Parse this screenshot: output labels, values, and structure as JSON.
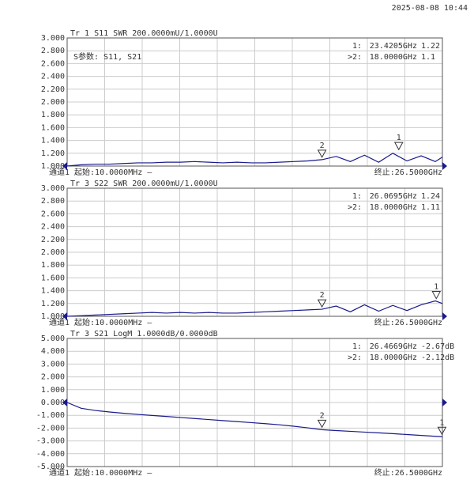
{
  "timestamp": "2025-08-08 10:44",
  "chart_data": [
    {
      "type": "line",
      "title": "Tr 1  S11 SWR 200.0000mU/1.0000U",
      "annotation": "S参数:  S11, S21",
      "footer_start": "通道1  起始:10.0000MHz —",
      "footer_end": "终止:26.5000GHz",
      "xlim": [
        0.01,
        26.5
      ],
      "ylim": [
        1,
        3
      ],
      "ref_level": 1,
      "yticks": [
        {
          "value": 3,
          "label": "3.000"
        },
        {
          "value": 2.8,
          "label": "2.800"
        },
        {
          "value": 2.6,
          "label": "2.600"
        },
        {
          "value": 2.4,
          "label": "2.400"
        },
        {
          "value": 2.2,
          "label": "2.200"
        },
        {
          "value": 2,
          "label": "2.000"
        },
        {
          "value": 1.8,
          "label": "1.800"
        },
        {
          "value": 1.6,
          "label": "1.600"
        },
        {
          "value": 1.4,
          "label": "1.400"
        },
        {
          "value": 1.2,
          "label": "1.200"
        },
        {
          "value": 1,
          "label": "1.000"
        }
      ],
      "x": [
        0.01,
        1,
        2,
        3,
        4,
        5,
        6,
        7,
        8,
        9,
        10,
        11,
        12,
        13,
        14,
        15,
        16,
        17,
        18,
        19,
        20,
        21,
        22,
        23,
        24,
        25,
        26,
        26.5
      ],
      "series": [
        {
          "color": "#1a1a8c",
          "values": [
            1.0,
            1.02,
            1.03,
            1.03,
            1.04,
            1.05,
            1.05,
            1.06,
            1.06,
            1.07,
            1.06,
            1.05,
            1.06,
            1.05,
            1.05,
            1.06,
            1.07,
            1.08,
            1.1,
            1.15,
            1.07,
            1.17,
            1.06,
            1.2,
            1.08,
            1.16,
            1.07,
            1.14
          ]
        }
      ],
      "markers": [
        {
          "id": "1",
          "prefix": "1:",
          "x": 23.4205,
          "x_label": "23.4205GHz",
          "y": 1.22
        },
        {
          "id": "2",
          "prefix": ">2:",
          "x": 18,
          "x_label": "18.0000GHz",
          "y": 1.1
        }
      ]
    },
    {
      "type": "line",
      "title": "Tr 3  S22 SWR 200.0000mU/1.0000U",
      "footer_start": "通道1  起始:10.0000MHz —",
      "footer_end": "终止:26.5000GHz",
      "xlim": [
        0.01,
        26.5
      ],
      "ylim": [
        1,
        3
      ],
      "ref_level": 1,
      "yticks": [
        {
          "value": 3,
          "label": "3.000"
        },
        {
          "value": 2.8,
          "label": "2.800"
        },
        {
          "value": 2.6,
          "label": "2.600"
        },
        {
          "value": 2.4,
          "label": "2.400"
        },
        {
          "value": 2.2,
          "label": "2.200"
        },
        {
          "value": 2,
          "label": "2.000"
        },
        {
          "value": 1.8,
          "label": "1.800"
        },
        {
          "value": 1.6,
          "label": "1.600"
        },
        {
          "value": 1.4,
          "label": "1.400"
        },
        {
          "value": 1.2,
          "label": "1.200"
        },
        {
          "value": 1,
          "label": "1.000"
        }
      ],
      "x": [
        0.01,
        1,
        2,
        3,
        4,
        5,
        6,
        7,
        8,
        9,
        10,
        11,
        12,
        13,
        14,
        15,
        16,
        17,
        18,
        19,
        20,
        21,
        22,
        23,
        24,
        25,
        26,
        26.5
      ],
      "series": [
        {
          "color": "#1a1a8c",
          "values": [
            1.0,
            1.01,
            1.02,
            1.03,
            1.04,
            1.05,
            1.06,
            1.05,
            1.06,
            1.05,
            1.06,
            1.05,
            1.05,
            1.06,
            1.07,
            1.08,
            1.09,
            1.1,
            1.11,
            1.16,
            1.07,
            1.18,
            1.08,
            1.17,
            1.09,
            1.18,
            1.24,
            1.2
          ]
        }
      ],
      "markers": [
        {
          "id": "1",
          "prefix": "1:",
          "x": 26.0695,
          "x_label": "26.0695GHz",
          "y": 1.24
        },
        {
          "id": "2",
          "prefix": ">2:",
          "x": 18,
          "x_label": "18.0000GHz",
          "y": 1.11
        }
      ]
    },
    {
      "type": "line",
      "title": "Tr 3  S21 LogM 1.0000dB/0.0000dB",
      "footer_start": "通道1  起始:10.0000MHz —",
      "footer_end": "终止:26.5000GHz",
      "xlim": [
        0.01,
        26.5
      ],
      "ylim": [
        -5,
        5
      ],
      "ref_level": 0,
      "yticks": [
        {
          "value": 5,
          "label": "5.000"
        },
        {
          "value": 4,
          "label": "4.000"
        },
        {
          "value": 3,
          "label": "3.000"
        },
        {
          "value": 2,
          "label": "2.000"
        },
        {
          "value": 1,
          "label": "1.000"
        },
        {
          "value": 0,
          "label": "0.000"
        },
        {
          "value": -1,
          "label": "-1.000"
        },
        {
          "value": -2,
          "label": "-2.000"
        },
        {
          "value": -3,
          "label": "-3.000"
        },
        {
          "value": -4,
          "label": "-4.000"
        },
        {
          "value": -5,
          "label": "-5.000"
        }
      ],
      "x": [
        0.01,
        1,
        2,
        3,
        4,
        5,
        6,
        7,
        8,
        9,
        10,
        11,
        12,
        13,
        14,
        15,
        16,
        17,
        18,
        19,
        20,
        21,
        22,
        23,
        24,
        25,
        26,
        26.5
      ],
      "series": [
        {
          "color": "#1a1a8c",
          "values": [
            0.0,
            -0.45,
            -0.62,
            -0.74,
            -0.84,
            -0.93,
            -1.01,
            -1.09,
            -1.17,
            -1.25,
            -1.33,
            -1.41,
            -1.49,
            -1.57,
            -1.65,
            -1.74,
            -1.85,
            -1.98,
            -2.12,
            -2.19,
            -2.25,
            -2.31,
            -2.37,
            -2.43,
            -2.5,
            -2.57,
            -2.64,
            -2.67
          ]
        }
      ],
      "markers": [
        {
          "id": "1",
          "prefix": "1:",
          "x": 26.4669,
          "x_label": "26.4669GHz",
          "y": -2.67,
          "y_label": "-2.67dB"
        },
        {
          "id": "2",
          "prefix": ">2:",
          "x": 18,
          "x_label": "18.0000GHz",
          "y": -2.12,
          "y_label": "-2.12dB"
        }
      ]
    }
  ]
}
